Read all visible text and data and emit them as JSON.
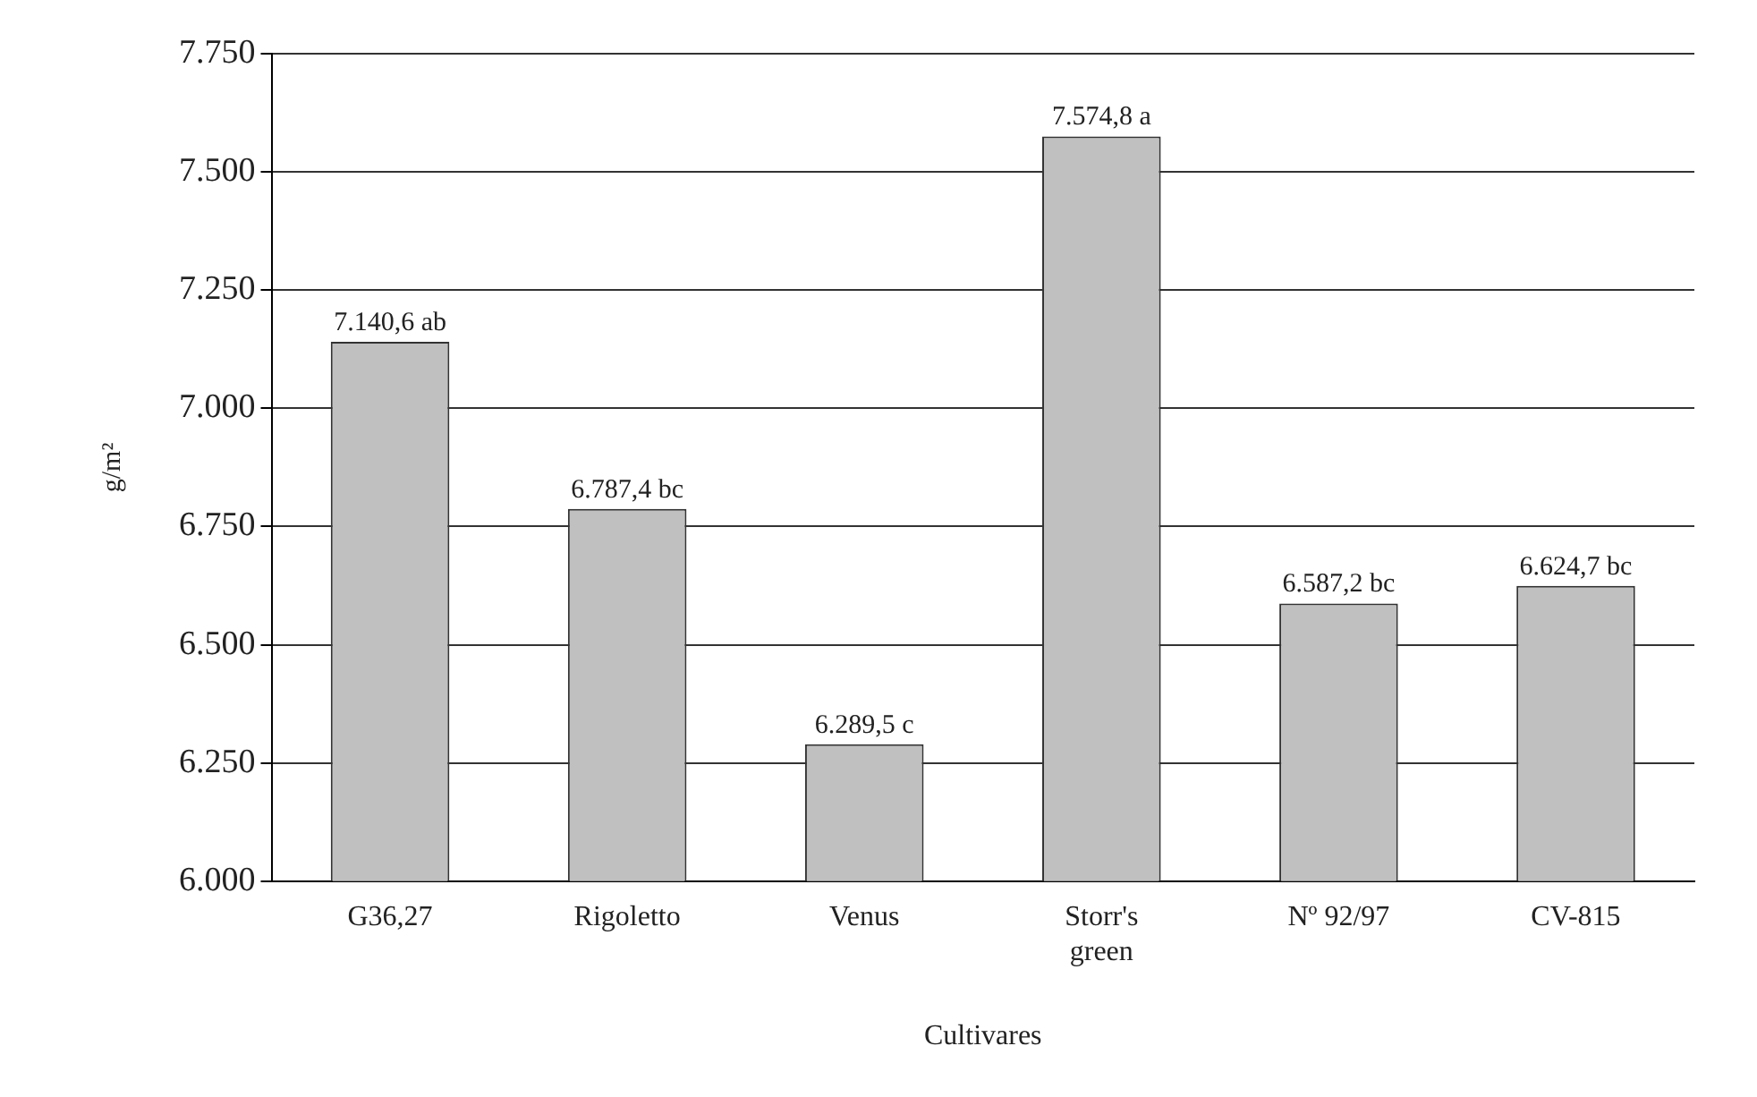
{
  "chart_data": {
    "type": "bar",
    "xlabel": "Cultivares",
    "ylabel": "g/m²",
    "categories": [
      "G36,27",
      "Rigoletto",
      "Venus",
      "Storr's green",
      "Nº 92/97",
      "CV-815"
    ],
    "values": [
      7140.6,
      6787.4,
      6289.5,
      7574.8,
      6587.2,
      6624.7
    ],
    "value_labels": [
      "7.140,6 ab",
      "6.787,4 bc",
      "6.289,5 c",
      "7.574,8 a",
      "6.587,2 bc",
      "6.624,7 bc"
    ],
    "color": "#c0c0c0",
    "ylim": [
      6000,
      7750
    ],
    "yticks": [
      {
        "value": 6000,
        "label": "6.000"
      },
      {
        "value": 6250,
        "label": "6.250"
      },
      {
        "value": 6500,
        "label": "6.500"
      },
      {
        "value": 6750,
        "label": "6.750"
      },
      {
        "value": 7000,
        "label": "7.000"
      },
      {
        "value": 7250,
        "label": "7.250"
      },
      {
        "value": 7500,
        "label": "7.500"
      },
      {
        "value": 7750,
        "label": "7.750"
      }
    ],
    "grid": "y",
    "legend": false
  }
}
